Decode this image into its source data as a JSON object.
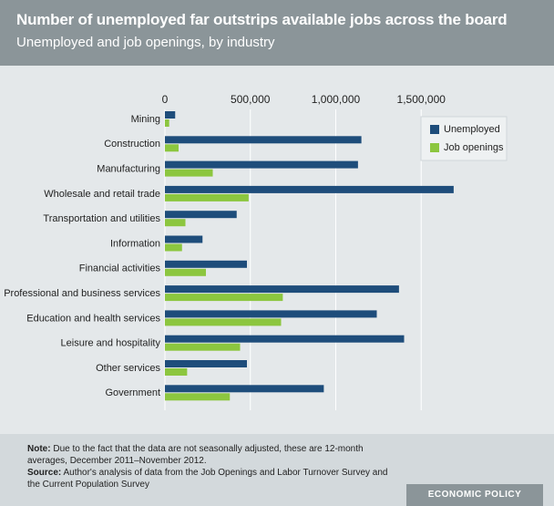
{
  "chart_data": {
    "type": "hbar",
    "title": "Number of unemployed far outstrips available jobs across the board",
    "subtitle": "Unemployed and job openings, by industry",
    "categories": [
      "Mining",
      "Construction",
      "Manufacturing",
      "Wholesale and retail trade",
      "Transportation and utilities",
      "Information",
      "Financial activities",
      "Professional and business services",
      "Education and health services",
      "Leisure and hospitality",
      "Other services",
      "Government"
    ],
    "series": [
      {
        "name": "Unemployed",
        "color": "#1e4d7b",
        "values": [
          60000,
          1150000,
          1130000,
          1690000,
          420000,
          220000,
          480000,
          1370000,
          1240000,
          1400000,
          480000,
          930000
        ]
      },
      {
        "name": "Job openings",
        "color": "#8cc63f",
        "values": [
          25000,
          80000,
          280000,
          490000,
          120000,
          100000,
          240000,
          690000,
          680000,
          440000,
          130000,
          380000
        ]
      }
    ],
    "xlim": [
      0,
      2000000
    ],
    "xticks": [
      0,
      {
        "value": 500000,
        "label": "500,000"
      },
      {
        "value": 1000000,
        "label": "1,000,000"
      },
      {
        "value": 1500000,
        "label": "1,500,000"
      }
    ],
    "grid": true,
    "legend": "upper right",
    "note_label": "Note:",
    "note": "Due to the fact that the data are not seasonally adjusted, these are 12-month averages, December 2011–November 2012.",
    "source_label": "Source:",
    "source": "Author's analysis of data from the Job Openings and Labor Turnover Survey and the Current Population Survey",
    "brand": "ECONOMIC POLICY INSTITUTE"
  }
}
